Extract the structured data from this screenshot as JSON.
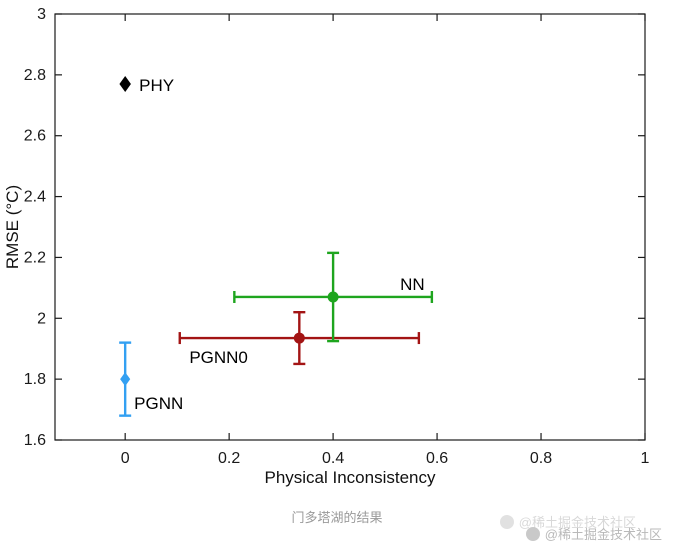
{
  "page": {
    "background": "#ffffff",
    "caption": "门多塔湖的结果",
    "watermark": "@稀土掘金技术社区"
  },
  "chart_data": {
    "type": "scatter",
    "title": "",
    "xlabel": "Physical Inconsistency",
    "ylabel": "RMSE (°C)",
    "xlim": [
      -0.135,
      1
    ],
    "ylim": [
      1.6,
      3
    ],
    "xticks": [
      0,
      0.2,
      0.4,
      0.6,
      0.8,
      1
    ],
    "yticks": [
      1.6,
      1.8,
      2,
      2.2,
      2.4,
      2.6,
      2.8,
      3
    ],
    "grid": false,
    "legend": "none",
    "axis_color": "#1a1a1a",
    "series": [
      {
        "name": "PHY",
        "x": 0,
        "y": 2.77,
        "xerr": 0,
        "yerr": 0,
        "color": "#000000",
        "marker": "diamond",
        "marker_size": 8,
        "label_offset": [
          14,
          7
        ],
        "label_anchor": "start"
      },
      {
        "name": "PGNN",
        "x": 0,
        "y": 1.8,
        "xerr": 0,
        "yerr": 0.12,
        "color": "#33a0f2",
        "marker": "diamond",
        "marker_size": 7,
        "label_offset": [
          9,
          30
        ],
        "label_anchor": "start"
      },
      {
        "name": "PGNN0",
        "x": 0.335,
        "y": 1.935,
        "xerr": 0.23,
        "yerr": 0.085,
        "color": "#a31414",
        "marker": "circle",
        "marker_size": 5.5,
        "label_offset": [
          -110,
          25
        ],
        "label_anchor": "start"
      },
      {
        "name": "NN",
        "x": 0.4,
        "y": 2.07,
        "xerr": 0.19,
        "yerr": 0.145,
        "color": "#1ea51e",
        "marker": "circle",
        "marker_size": 5.5,
        "label_offset": [
          67,
          -7
        ],
        "label_anchor": "start"
      }
    ]
  }
}
